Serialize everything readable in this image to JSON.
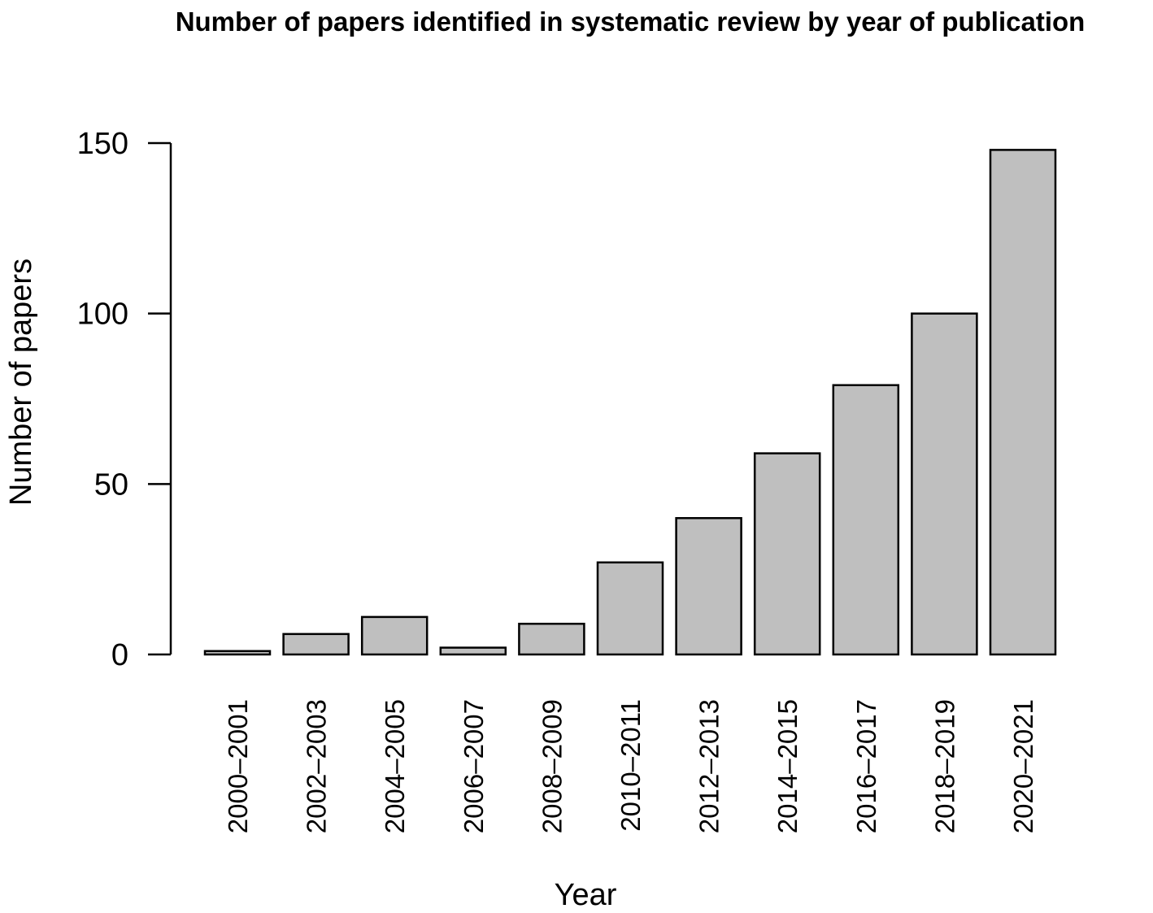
{
  "chart_data": {
    "type": "bar",
    "title": "Number of papers identified in systematic review by year of publication",
    "xlabel": "Year",
    "ylabel": "Number of papers",
    "categories": [
      "2000–2001",
      "2002–2003",
      "2004–2005",
      "2006–2007",
      "2008–2009",
      "2010–2011",
      "2012–2013",
      "2014–2015",
      "2016–2017",
      "2018–2019",
      "2020–2021"
    ],
    "values": [
      1,
      6,
      11,
      2,
      9,
      27,
      40,
      59,
      79,
      100,
      148
    ],
    "ylim": [
      0,
      150
    ],
    "yticks": [
      0,
      50,
      100,
      150
    ],
    "ytick_labels": [
      "0",
      "50",
      "100",
      "150"
    ],
    "colors": {
      "bar_fill": "#bfbfbf",
      "bar_stroke": "#000000"
    },
    "grid": false,
    "legend": "none"
  }
}
